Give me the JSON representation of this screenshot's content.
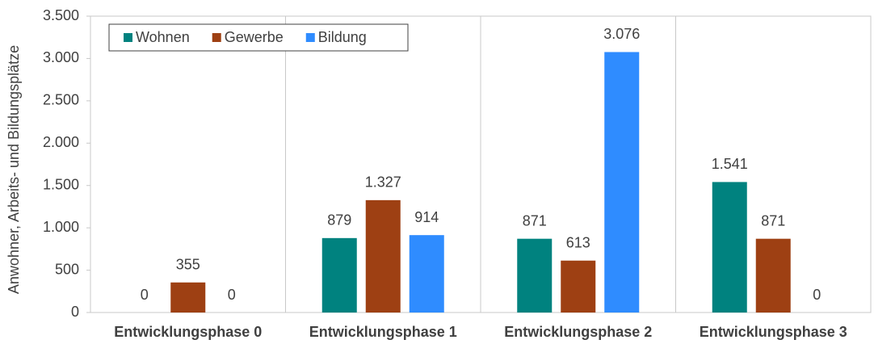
{
  "chart_data": {
    "type": "bar",
    "y_label": "Anwohner, Arbeits- und Bildungsplätze",
    "categories": [
      "Entwicklungsphase 0",
      "Entwicklungsphase 1",
      "Entwicklungsphase 2",
      "Entwicklungsphase 3"
    ],
    "series": [
      {
        "name": "Wohnen",
        "color": "#00827f",
        "values": [
          0,
          879,
          871,
          1541
        ],
        "value_labels": [
          "0",
          "879",
          "871",
          "1.541"
        ]
      },
      {
        "name": "Gewerbe",
        "color": "#9e4013",
        "values": [
          355,
          1327,
          613,
          871
        ],
        "value_labels": [
          "355",
          "1.327",
          "613",
          "871"
        ]
      },
      {
        "name": "Bildung",
        "color": "#2f8cff",
        "values": [
          0,
          914,
          3076,
          0
        ],
        "value_labels": [
          "0",
          "914",
          "3.076",
          "0"
        ]
      }
    ],
    "ylim": [
      0,
      3500
    ],
    "yticks": [
      0,
      500,
      {
        "value": 1000,
        "label": "1.000"
      },
      {
        "value": 1500,
        "label": "1.500"
      },
      {
        "value": 2000,
        "label": "2.000"
      },
      {
        "value": 2500,
        "label": "2.500"
      },
      {
        "value": 3000,
        "label": "3.000"
      },
      {
        "value": 3500,
        "label": "3.500"
      }
    ],
    "legend": "top-left"
  }
}
